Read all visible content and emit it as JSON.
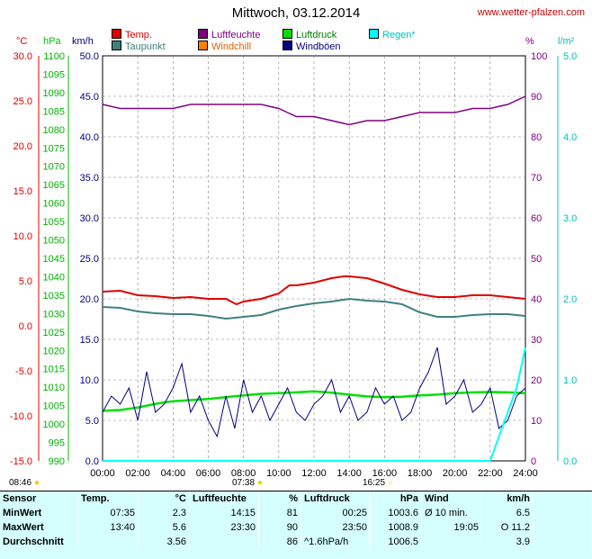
{
  "title": "Mittwoch, 03.12.2014",
  "site": "www.wetter-pfalzen.com",
  "units": {
    "temp": "°C",
    "pressure": "hPa",
    "wind": "km/h",
    "humidity": "%",
    "rain": "l/m²"
  },
  "legend": [
    {
      "label": "Temp.",
      "color": "#e00000"
    },
    {
      "label": "Luftfeuchte",
      "color": "#800080"
    },
    {
      "label": "Luftdruck",
      "color": "#00e000"
    },
    {
      "label": "Regen*",
      "color": "#00ffff"
    },
    {
      "label": "Taupunkt",
      "color": "#408080"
    },
    {
      "label": "Windchill",
      "color": "#ff8000"
    },
    {
      "label": "Windböen",
      "color": "#000080"
    }
  ],
  "sun": {
    "rise": "08:46",
    "set": "16:25",
    "t1": "07:38"
  },
  "colors": {
    "temp": "#e00000",
    "humidity": "#800080",
    "pressure": "#00e000",
    "rain": "#00ffff",
    "dew": "#408080",
    "windchill": "#ff8000",
    "wind": "#000080",
    "grid": "#808080"
  },
  "chart_data": {
    "type": "line",
    "x_labels": [
      "00:00",
      "02:00",
      "04:00",
      "06:00",
      "08:00",
      "10:00",
      "12:00",
      "14:00",
      "16:00",
      "18:00",
      "20:00",
      "22:00",
      "24:00"
    ],
    "axes": {
      "temp": {
        "ticks": [
          "30.0",
          "25.0",
          "20.0",
          "15.0",
          "10.0",
          "5.0",
          "0.0",
          "-5.0",
          "-10.0",
          "-15.0"
        ],
        "range": [
          -15,
          30
        ]
      },
      "pressure": {
        "ticks": [
          "1100",
          "1095",
          "1090",
          "1085",
          "1080",
          "1075",
          "1070",
          "1065",
          "1060",
          "1055",
          "1050",
          "1045",
          "1040",
          "1035",
          "1030",
          "1025",
          "1020",
          "1015",
          "1010",
          "1005",
          "1000",
          "995",
          "990"
        ],
        "range": [
          990,
          1100
        ]
      },
      "wind": {
        "ticks": [
          "50.0",
          "45.0",
          "40.0",
          "35.0",
          "30.0",
          "25.0",
          "20.0",
          "15.0",
          "10.0",
          "5.0",
          "0.0"
        ],
        "range": [
          0,
          50
        ]
      },
      "humidity": {
        "ticks": [
          "100",
          "90",
          "80",
          "70",
          "60",
          "50",
          "40",
          "30",
          "20",
          "10",
          "0"
        ],
        "range": [
          0,
          100
        ]
      },
      "rain": {
        "ticks": [
          "5.0",
          "4.0",
          "3.0",
          "2.0",
          "1.0",
          "0.0"
        ],
        "range": [
          0,
          5
        ]
      }
    },
    "series": [
      {
        "name": "Temp.",
        "unit": "°C",
        "x": [
          0,
          1,
          2,
          3,
          4,
          5,
          6,
          7,
          7.6,
          8,
          9,
          10,
          10.6,
          11,
          12,
          13,
          13.7,
          14,
          15,
          16,
          17,
          18,
          19,
          20,
          21,
          22,
          23,
          24
        ],
        "y": [
          3.8,
          3.9,
          3.4,
          3.3,
          3.1,
          3.2,
          3.0,
          3.0,
          2.4,
          2.7,
          3.0,
          3.6,
          4.5,
          4.5,
          4.8,
          5.3,
          5.5,
          5.5,
          5.3,
          4.7,
          4.0,
          3.5,
          3.2,
          3.2,
          3.4,
          3.4,
          3.2,
          3.0
        ]
      },
      {
        "name": "Taupunkt",
        "unit": "°C",
        "x": [
          0,
          1,
          2,
          3,
          4,
          5,
          6,
          7,
          8,
          9,
          10,
          11,
          12,
          13,
          14,
          15,
          16,
          17,
          18,
          19,
          20,
          21,
          22,
          23,
          24
        ],
        "y": [
          2.1,
          2.0,
          1.6,
          1.4,
          1.3,
          1.3,
          1.1,
          0.8,
          1.0,
          1.2,
          1.8,
          2.2,
          2.5,
          2.7,
          3.0,
          2.8,
          2.7,
          2.4,
          1.5,
          1.0,
          1.0,
          1.2,
          1.3,
          1.3,
          1.1
        ]
      },
      {
        "name": "Luftfeuchte",
        "unit": "%",
        "x": [
          0,
          1,
          2,
          3,
          4,
          5,
          6,
          7,
          8,
          9,
          10,
          10.5,
          11,
          12,
          13,
          14,
          15,
          16,
          17,
          18,
          19,
          20,
          21,
          22,
          23,
          24
        ],
        "y": [
          88,
          87,
          87,
          87,
          87,
          88,
          88,
          88,
          88,
          88,
          87,
          86,
          85,
          85,
          84,
          83,
          84,
          84,
          85,
          86,
          86,
          86,
          87,
          87,
          88,
          90
        ]
      },
      {
        "name": "Luftdruck",
        "unit": "hPa",
        "x": [
          0,
          1,
          2,
          3,
          4,
          5,
          6,
          7,
          8,
          9,
          10,
          11,
          12,
          13,
          14,
          15,
          16,
          17,
          18,
          19,
          20,
          21,
          22,
          23,
          24
        ],
        "y": [
          1003.6,
          1003.8,
          1004.5,
          1005.5,
          1006.2,
          1006.5,
          1006.8,
          1007.3,
          1007.8,
          1008.2,
          1008.4,
          1008.6,
          1008.9,
          1008.5,
          1008.0,
          1007.5,
          1007.3,
          1007.4,
          1007.8,
          1008.0,
          1008.4,
          1008.6,
          1008.7,
          1008.6,
          1008.4
        ]
      },
      {
        "name": "Windböen",
        "unit": "km/h",
        "x": [
          0,
          0.5,
          1,
          1.5,
          2,
          2.5,
          3,
          3.5,
          4,
          4.5,
          5,
          5.5,
          6,
          6.5,
          7,
          7.5,
          8,
          8.5,
          9,
          9.5,
          10,
          10.5,
          11,
          11.5,
          12,
          12.5,
          13,
          13.5,
          14,
          14.5,
          15,
          15.5,
          16,
          16.5,
          17,
          17.5,
          18,
          18.5,
          19,
          19.5,
          20,
          20.5,
          21,
          21.5,
          22,
          22.5,
          23,
          23.5,
          24
        ],
        "y": [
          6,
          8,
          7,
          9,
          5,
          11,
          6,
          7,
          9,
          12,
          6,
          8,
          5,
          3,
          8,
          4,
          10,
          6,
          8,
          5,
          7,
          9,
          6,
          5,
          7,
          8,
          10,
          6,
          8,
          5,
          6,
          9,
          7,
          8,
          5,
          6,
          9,
          11,
          14,
          7,
          8,
          10,
          6,
          7,
          9,
          4,
          5,
          8,
          9
        ]
      },
      {
        "name": "Regen*",
        "unit": "l/m²",
        "x": [
          0,
          22.0,
          22.5,
          23,
          23.5,
          23.8,
          24
        ],
        "y": [
          0,
          0,
          0.3,
          0.6,
          0.9,
          1.2,
          1.4
        ]
      }
    ]
  },
  "table": {
    "headers": [
      "Sensor",
      "Temp.",
      "°C",
      "Luftfeuchte",
      "%",
      "Luftdruck",
      "hPa",
      "Wind",
      "km/h"
    ],
    "rows": [
      {
        "label": "MinWert",
        "t_time": "07:35",
        "t_val": "2.3",
        "h_time": "14:15",
        "h_val": "81",
        "p_time": "00:25",
        "p_val": "1003.6",
        "w_label": "Ø 10 min.",
        "w_val": "6.5"
      },
      {
        "label": "MaxWert",
        "t_time": "13:40",
        "t_val": "5.6",
        "h_time": "23:30",
        "h_val": "90",
        "p_time": "23:50",
        "p_val": "1008.9",
        "w_label": "19:05",
        "w_val": "O 11.2"
      },
      {
        "label": "Durchschnitt",
        "t_time": "",
        "t_val": "3.56",
        "h_time": "",
        "h_val": "86",
        "p_time": "^1.6hPa/h",
        "p_val": "1006.5",
        "w_label": "",
        "w_val": "3.9"
      }
    ]
  }
}
